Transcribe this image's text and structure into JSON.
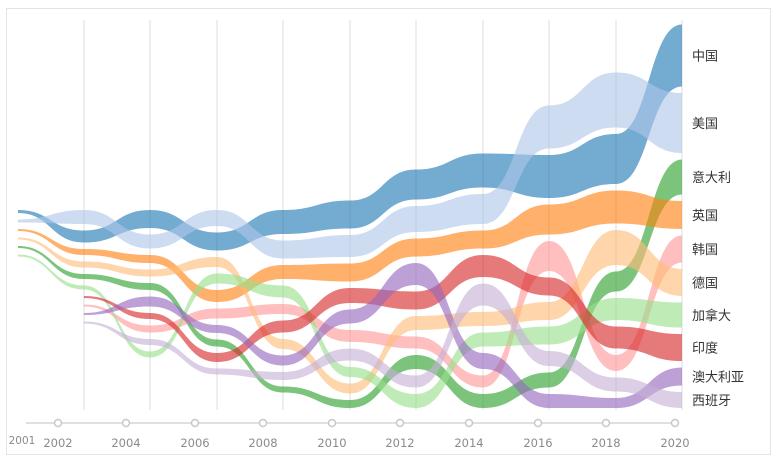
{
  "chart_data": {
    "type": "area",
    "subtype": "ranked stream (bump) chart",
    "x": [
      "2001",
      "2002",
      "2004",
      "2006",
      "2008",
      "2010",
      "2012",
      "2014",
      "2016",
      "2018",
      "2020"
    ],
    "timeline_ticks": [
      "2001",
      "2002",
      "2004",
      "2006",
      "2008",
      "2010",
      "2012",
      "2014",
      "2016",
      "2018",
      "2020"
    ],
    "grid": true,
    "legend": "right (end labels)",
    "series": [
      {
        "name": "中国",
        "color": "#1f77b4",
        "rank": [
          1,
          2,
          1,
          2,
          1,
          1,
          1,
          1,
          2,
          2,
          1
        ],
        "value": [
          3,
          12,
          18,
          18,
          24,
          28,
          30,
          34,
          43,
          50,
          62
        ]
      },
      {
        "name": "美国",
        "color": "#aec7e8",
        "rank": [
          2,
          1,
          2,
          1,
          2,
          2,
          2,
          2,
          1,
          1,
          2
        ],
        "value": [
          3,
          14,
          14,
          16,
          18,
          22,
          26,
          30,
          43,
          55,
          60
        ]
      },
      {
        "name": "意大利",
        "color": "#2ca02c",
        "rank": [
          5,
          5,
          5,
          8,
          10,
          10,
          8,
          10,
          9,
          5,
          3
        ],
        "value": [
          2,
          5,
          7,
          7,
          6,
          8,
          14,
          14,
          15,
          20,
          35
        ]
      },
      {
        "name": "英国",
        "color": "#ff7f0e",
        "rank": [
          3,
          3,
          3,
          5,
          3,
          3,
          3,
          3,
          3,
          3,
          4
        ],
        "value": [
          2,
          6,
          8,
          12,
          14,
          18,
          18,
          18,
          30,
          33,
          28
        ]
      },
      {
        "name": "韩国",
        "color": "#ff9896",
        "rank": [
          null,
          8,
          8,
          6,
          5,
          6,
          7,
          9,
          4,
          8,
          5
        ],
        "value": [
          null,
          2,
          7,
          10,
          10,
          12,
          12,
          12,
          30,
          16,
          27
        ]
      },
      {
        "name": "德国",
        "color": "#ffbb78",
        "rank": [
          4,
          4,
          4,
          3,
          7,
          9,
          6,
          6,
          6,
          4,
          6
        ],
        "value": [
          2,
          6,
          7,
          10,
          10,
          10,
          14,
          14,
          18,
          35,
          27
        ]
      },
      {
        "name": "加拿大",
        "color": "#98df8a",
        "rank": [
          6,
          6,
          10,
          4,
          4,
          8,
          10,
          7,
          7,
          6,
          7
        ],
        "value": [
          2,
          4,
          6,
          10,
          12,
          10,
          14,
          14,
          18,
          22,
          25
        ]
      },
      {
        "name": "印度",
        "color": "#d62728",
        "rank": [
          null,
          7,
          7,
          9,
          6,
          4,
          5,
          4,
          5,
          7,
          8
        ],
        "value": [
          null,
          2,
          6,
          9,
          12,
          15,
          18,
          22,
          18,
          22,
          27
        ]
      },
      {
        "name": "澳大利亚",
        "color": "#9467bd",
        "rank": [
          null,
          9,
          6,
          7,
          8,
          5,
          4,
          8,
          10,
          10,
          9
        ],
        "value": [
          null,
          2,
          10,
          8,
          10,
          14,
          22,
          16,
          14,
          10,
          18
        ]
      },
      {
        "name": "西班牙",
        "color": "#c5b0d5",
        "rank": [
          null,
          10,
          9,
          10,
          9,
          7,
          9,
          5,
          8,
          9,
          10
        ],
        "value": [
          null,
          2,
          6,
          6,
          8,
          12,
          12,
          22,
          15,
          14,
          16
        ]
      }
    ]
  }
}
